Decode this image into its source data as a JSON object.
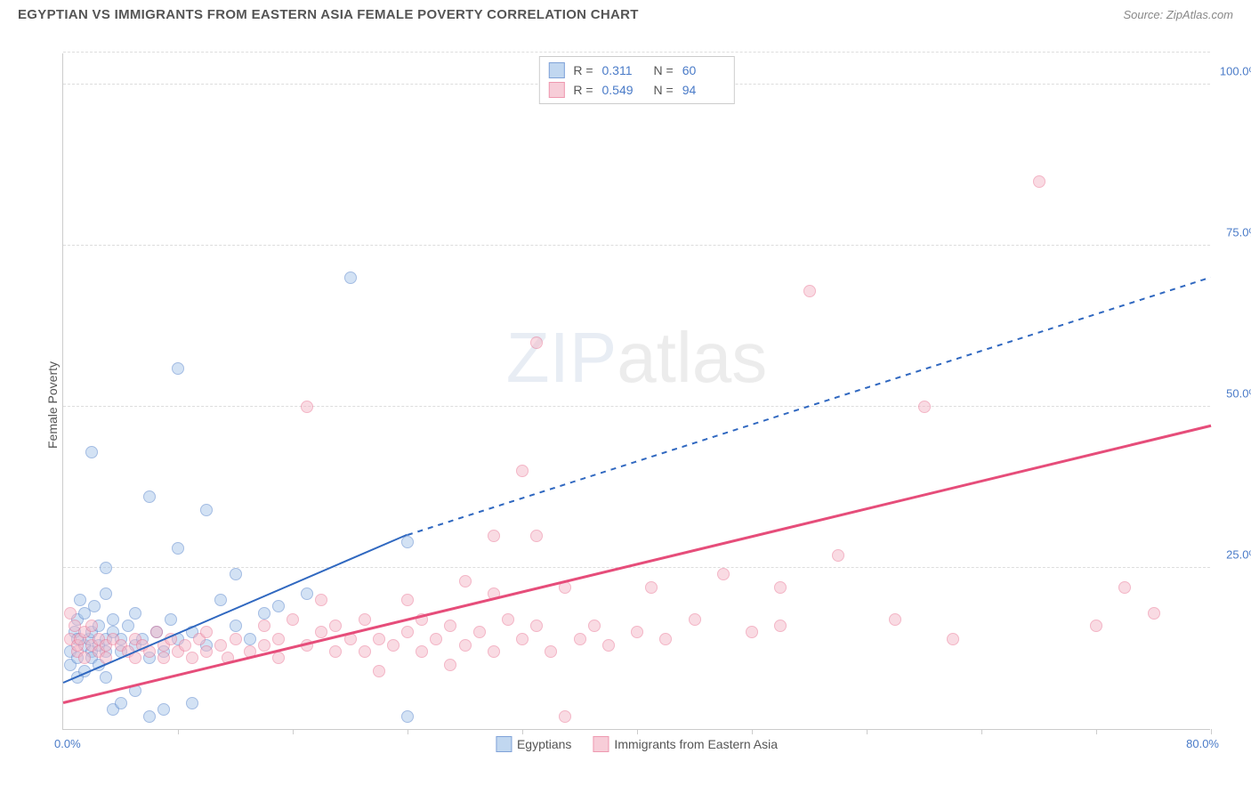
{
  "title": "EGYPTIAN VS IMMIGRANTS FROM EASTERN ASIA FEMALE POVERTY CORRELATION CHART",
  "source": "Source: ZipAtlas.com",
  "y_axis_label": "Female Poverty",
  "watermark": {
    "zip": "ZIP",
    "atlas": "atlas"
  },
  "chart": {
    "type": "scatter",
    "xlim": [
      0,
      80
    ],
    "ylim": [
      0,
      105
    ],
    "x_ticks_pct": [
      10,
      20,
      30,
      40,
      50,
      60,
      70,
      80,
      90,
      100
    ],
    "x_tick_labels": {
      "min": "0.0%",
      "max": "80.0%"
    },
    "y_gridlines": [
      25,
      50,
      75,
      100,
      105
    ],
    "y_tick_labels": {
      "25": "25.0%",
      "50": "50.0%",
      "75": "75.0%",
      "100": "100.0%"
    },
    "background_color": "#ffffff",
    "grid_color": "#dddddd",
    "marker_radius": 7,
    "marker_stroke_width": 1.2
  },
  "series": [
    {
      "key": "egyptians",
      "label": "Egyptians",
      "fill": "#a8c7ea",
      "stroke": "#4a7bc8",
      "fill_opacity": 0.5,
      "R": "0.311",
      "N": "60",
      "trend": {
        "color": "#3068c0",
        "solid": {
          "x1": 0,
          "y1": 7,
          "x2": 24,
          "y2": 30
        },
        "dashed": {
          "x1": 24,
          "y1": 30,
          "x2": 80,
          "y2": 70
        },
        "width": 2
      },
      "points": [
        [
          0.5,
          10
        ],
        [
          0.5,
          12
        ],
        [
          0.8,
          15
        ],
        [
          1,
          8
        ],
        [
          1,
          11
        ],
        [
          1,
          14
        ],
        [
          1,
          17
        ],
        [
          1.2,
          20
        ],
        [
          1.5,
          13
        ],
        [
          1.5,
          18
        ],
        [
          1.5,
          9
        ],
        [
          1.8,
          14
        ],
        [
          2,
          43
        ],
        [
          2,
          12
        ],
        [
          2,
          15
        ],
        [
          2,
          11
        ],
        [
          2.2,
          19
        ],
        [
          2.5,
          16
        ],
        [
          2.5,
          10
        ],
        [
          2.5,
          13
        ],
        [
          3,
          8
        ],
        [
          3,
          12
        ],
        [
          3,
          14
        ],
        [
          3,
          21
        ],
        [
          3,
          25
        ],
        [
          3.5,
          15
        ],
        [
          3.5,
          17
        ],
        [
          3.5,
          3
        ],
        [
          4,
          14
        ],
        [
          4,
          12
        ],
        [
          4,
          4
        ],
        [
          4.5,
          16
        ],
        [
          5,
          13
        ],
        [
          5,
          6
        ],
        [
          5,
          18
        ],
        [
          5.5,
          14
        ],
        [
          6,
          2
        ],
        [
          6,
          11
        ],
        [
          6,
          36
        ],
        [
          6.5,
          15
        ],
        [
          7,
          12
        ],
        [
          7,
          3
        ],
        [
          7.5,
          17
        ],
        [
          8,
          56
        ],
        [
          8,
          28
        ],
        [
          8,
          14
        ],
        [
          9,
          15
        ],
        [
          9,
          4
        ],
        [
          10,
          34
        ],
        [
          10,
          13
        ],
        [
          11,
          20
        ],
        [
          12,
          16
        ],
        [
          12,
          24
        ],
        [
          13,
          14
        ],
        [
          14,
          18
        ],
        [
          15,
          19
        ],
        [
          17,
          21
        ],
        [
          20,
          70
        ],
        [
          24,
          2
        ],
        [
          24,
          29
        ]
      ]
    },
    {
      "key": "immigrants",
      "label": "Immigrants from Eastern Asia",
      "fill": "#f5b8c8",
      "stroke": "#e86e8f",
      "fill_opacity": 0.5,
      "R": "0.549",
      "N": "94",
      "trend": {
        "color": "#e64d7a",
        "solid": {
          "x1": 0,
          "y1": 4,
          "x2": 80,
          "y2": 47
        },
        "width": 2.5
      },
      "points": [
        [
          0.5,
          18
        ],
        [
          0.5,
          14
        ],
        [
          0.8,
          16
        ],
        [
          1,
          12
        ],
        [
          1,
          13
        ],
        [
          1.2,
          14
        ],
        [
          1.5,
          11
        ],
        [
          1.5,
          15
        ],
        [
          2,
          13
        ],
        [
          2,
          16
        ],
        [
          2.5,
          12
        ],
        [
          2.5,
          14
        ],
        [
          3,
          13
        ],
        [
          3,
          11
        ],
        [
          3.5,
          14
        ],
        [
          4,
          13
        ],
        [
          4.5,
          12
        ],
        [
          5,
          14
        ],
        [
          5,
          11
        ],
        [
          5.5,
          13
        ],
        [
          6,
          12
        ],
        [
          6.5,
          15
        ],
        [
          7,
          13
        ],
        [
          7,
          11
        ],
        [
          7.5,
          14
        ],
        [
          8,
          12
        ],
        [
          8.5,
          13
        ],
        [
          9,
          11
        ],
        [
          9.5,
          14
        ],
        [
          10,
          12
        ],
        [
          10,
          15
        ],
        [
          11,
          13
        ],
        [
          11.5,
          11
        ],
        [
          12,
          14
        ],
        [
          13,
          12
        ],
        [
          14,
          13
        ],
        [
          14,
          16
        ],
        [
          15,
          11
        ],
        [
          15,
          14
        ],
        [
          16,
          17
        ],
        [
          17,
          13
        ],
        [
          17,
          50
        ],
        [
          18,
          15
        ],
        [
          18,
          20
        ],
        [
          19,
          12
        ],
        [
          19,
          16
        ],
        [
          20,
          14
        ],
        [
          21,
          12
        ],
        [
          21,
          17
        ],
        [
          22,
          9
        ],
        [
          22,
          14
        ],
        [
          23,
          13
        ],
        [
          24,
          15
        ],
        [
          24,
          20
        ],
        [
          25,
          12
        ],
        [
          25,
          17
        ],
        [
          26,
          14
        ],
        [
          27,
          10
        ],
        [
          27,
          16
        ],
        [
          28,
          13
        ],
        [
          28,
          23
        ],
        [
          29,
          15
        ],
        [
          30,
          12
        ],
        [
          30,
          21
        ],
        [
          30,
          30
        ],
        [
          31,
          17
        ],
        [
          32,
          40
        ],
        [
          32,
          14
        ],
        [
          33,
          16
        ],
        [
          33,
          30
        ],
        [
          33,
          60
        ],
        [
          34,
          12
        ],
        [
          35,
          22
        ],
        [
          35,
          2
        ],
        [
          36,
          14
        ],
        [
          37,
          16
        ],
        [
          38,
          13
        ],
        [
          40,
          15
        ],
        [
          41,
          22
        ],
        [
          42,
          14
        ],
        [
          44,
          17
        ],
        [
          46,
          24
        ],
        [
          48,
          15
        ],
        [
          50,
          22
        ],
        [
          50,
          16
        ],
        [
          52,
          68
        ],
        [
          54,
          27
        ],
        [
          58,
          17
        ],
        [
          60,
          50
        ],
        [
          62,
          14
        ],
        [
          68,
          85
        ],
        [
          72,
          16
        ],
        [
          74,
          22
        ],
        [
          76,
          18
        ]
      ]
    }
  ],
  "legend_labels": {
    "R": "R =",
    "N": "N ="
  }
}
